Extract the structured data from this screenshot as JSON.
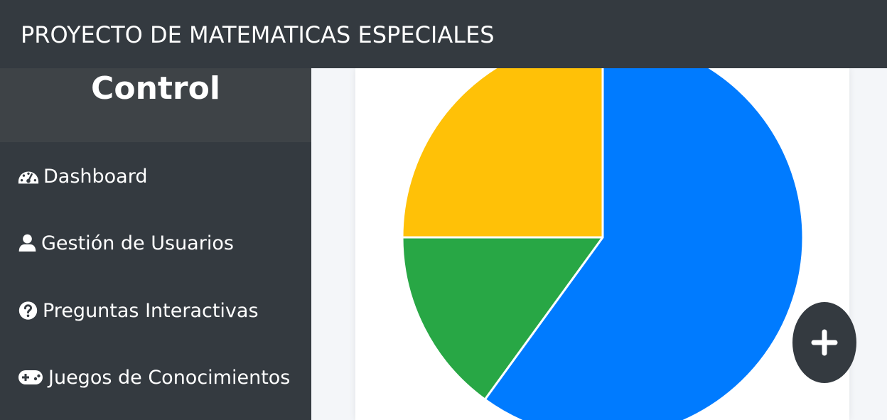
{
  "header": {
    "title": "PROYECTO DE MATEMATICAS ESPECIALES"
  },
  "sidebar": {
    "title": "Control",
    "items": [
      {
        "label": "Dashboard",
        "icon": "tachometer-icon"
      },
      {
        "label": "Gestión de Usuarios",
        "icon": "user-icon"
      },
      {
        "label": "Preguntas Interactivas",
        "icon": "question-circle-icon"
      },
      {
        "label": "Juegos de Conocimientos",
        "icon": "gamepad-icon"
      }
    ]
  },
  "fab": {
    "icon": "plus-icon"
  },
  "colors": {
    "navbar": "#343a40",
    "sidebar_header": "#3e4347",
    "background": "#f4f6f9",
    "blue": "#007bff",
    "green": "#28a745",
    "yellow": "#ffc107"
  },
  "chart_data": {
    "type": "pie",
    "title": "",
    "values": [
      60,
      15,
      25
    ],
    "colors": [
      "#007bff",
      "#28a745",
      "#ffc107"
    ]
  }
}
